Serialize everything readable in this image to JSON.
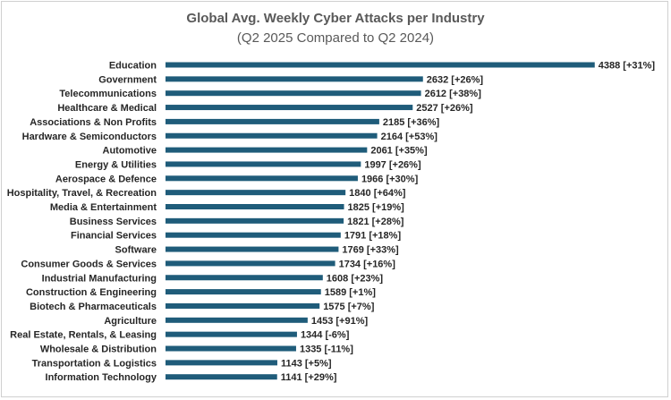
{
  "chart_data": {
    "type": "bar",
    "orientation": "horizontal",
    "title": "Global Avg. Weekly Cyber Attacks per Industry",
    "subtitle": "(Q2 2025 Compared to Q2 2024)",
    "bar_color": "#1f5c7a",
    "xlim": [
      0,
      4500
    ],
    "grid": false,
    "legend": "none",
    "categories": [
      "Education",
      "Government",
      "Telecommunications",
      "Healthcare & Medical",
      "Associations & Non Profits",
      "Hardware & Semiconductors",
      "Automotive",
      "Energy & Utilities",
      "Aerospace & Defence",
      "Hospitality, Travel, & Recreation",
      "Media & Entertainment",
      "Business Services",
      "Financial Services",
      "Software",
      "Consumer Goods & Services",
      "Industrial Manufacturing",
      "Construction & Engineering",
      "Biotech & Pharmaceuticals",
      "Agriculture",
      "Real Estate, Rentals, & Leasing",
      "Wholesale & Distribution",
      "Transportation & Logistics",
      "Information Technology"
    ],
    "values": [
      4388,
      2632,
      2612,
      2527,
      2185,
      2164,
      2061,
      1997,
      1966,
      1840,
      1825,
      1821,
      1791,
      1769,
      1734,
      1608,
      1589,
      1575,
      1453,
      1344,
      1335,
      1143,
      1141
    ],
    "data_labels": [
      "4388 [+31%]",
      "2632 [+26%]",
      "2612 [+38%]",
      "2527 [+26%]",
      "2185 [+36%]",
      "2164 [+53%]",
      "2061 [+35%]",
      "1997 [+26%]",
      "1966 [+30%]",
      "1840 [+64%]",
      "1825 [+19%]",
      "1821 [+28%]",
      "1791 [+18%]",
      "1769 [+33%]",
      "1734 [+16%]",
      "1608 [+23%]",
      "1589 [+1%]",
      "1575 [+7%]",
      "1453 [+91%]",
      "1344 [-6%]",
      "1335 [-11%]",
      "1143 [+5%]",
      "1141 [+29%]"
    ]
  }
}
